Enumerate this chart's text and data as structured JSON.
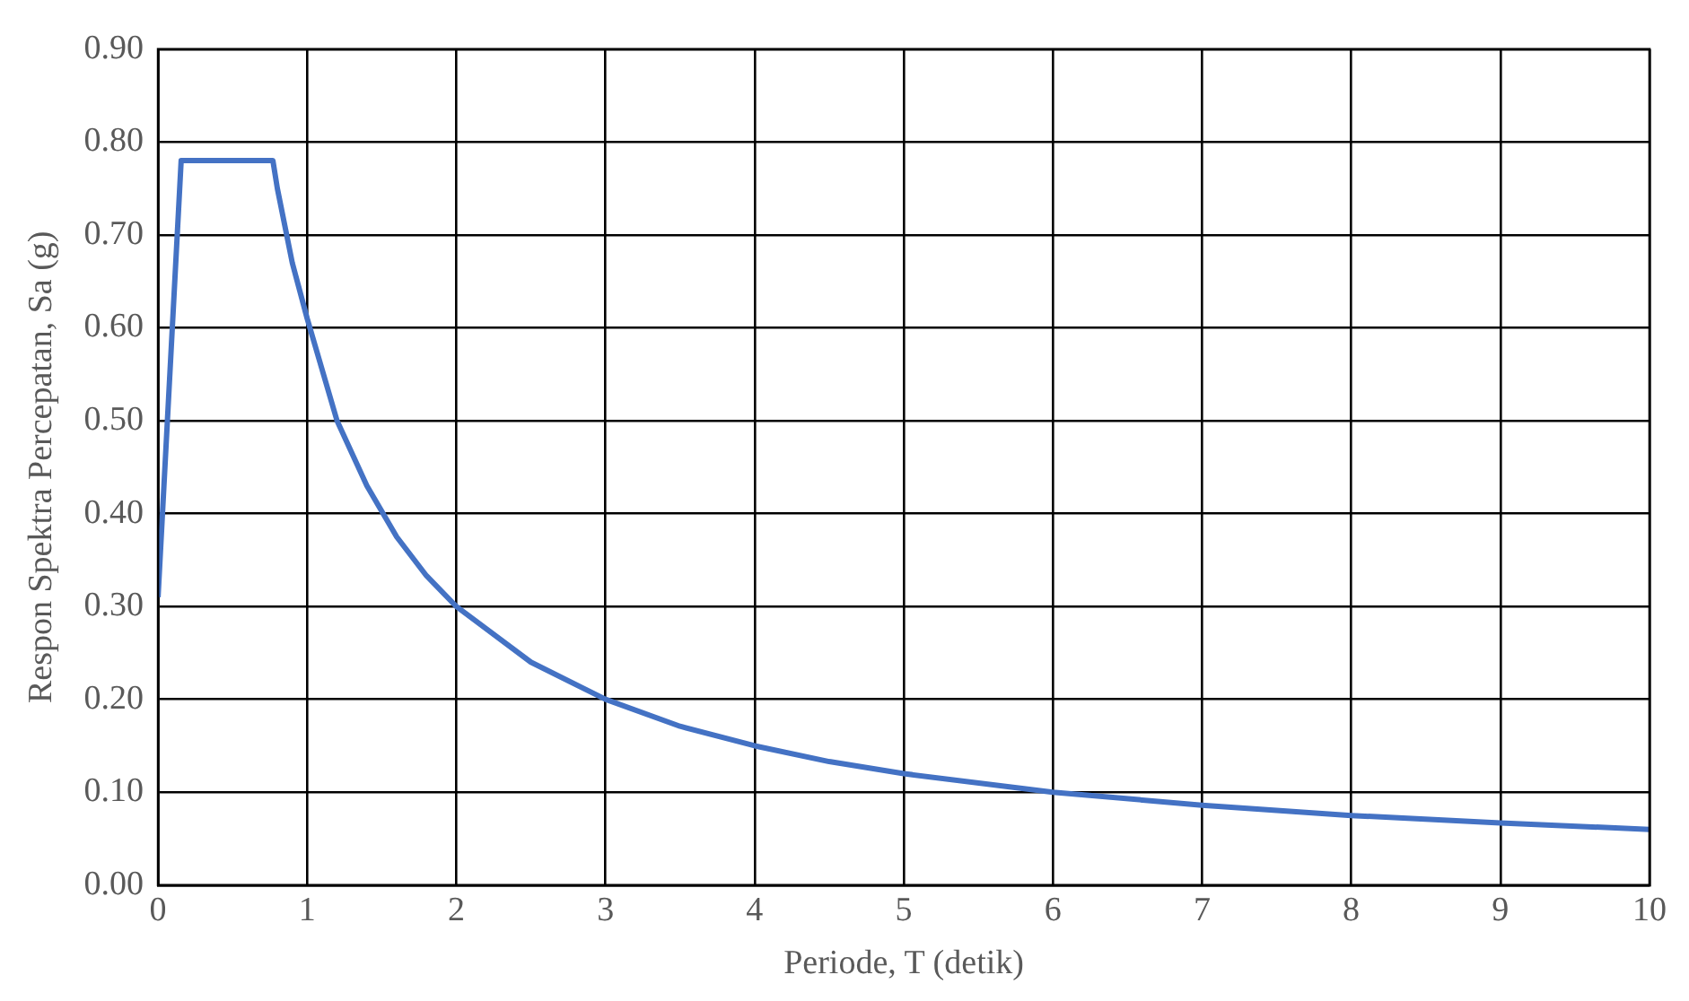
{
  "chart_data": {
    "type": "line",
    "xlabel": "Periode, T (detik)",
    "ylabel": "Respon Spektra Percepatan, Sa (g)",
    "x": [
      0,
      0.155,
      0.77,
      0.8,
      0.9,
      1,
      1.2,
      1.4,
      1.6,
      1.8,
      2,
      2.5,
      3,
      3.5,
      4,
      4.5,
      5,
      6,
      7,
      8,
      9,
      10
    ],
    "series": [
      {
        "color": "#4472c4",
        "values": [
          0.31,
          0.78,
          0.78,
          0.75,
          0.67,
          0.61,
          0.5,
          0.43,
          0.375,
          0.333,
          0.3,
          0.24,
          0.2,
          0.171,
          0.15,
          0.133,
          0.12,
          0.1,
          0.086,
          0.075,
          0.067,
          0.06
        ]
      }
    ],
    "xlim": [
      0,
      10
    ],
    "xticks": [
      0,
      1,
      2,
      3,
      4,
      5,
      6,
      7,
      8,
      9,
      10
    ],
    "ylim": [
      0,
      0.9
    ],
    "yticks": [
      {
        "value": 0,
        "label": "0.00"
      },
      {
        "value": 0.1,
        "label": "0.10"
      },
      {
        "value": 0.2,
        "label": "0.20"
      },
      {
        "value": 0.3,
        "label": "0.30"
      },
      {
        "value": 0.4,
        "label": "0.40"
      },
      {
        "value": 0.5,
        "label": "0.50"
      },
      {
        "value": 0.6,
        "label": "0.60"
      },
      {
        "value": 0.7,
        "label": "0.70"
      },
      {
        "value": 0.8,
        "label": "0.80"
      },
      {
        "value": 0.9,
        "label": "0.90"
      }
    ],
    "grid": true,
    "legend": false,
    "marker": "none",
    "line_style": "solid"
  }
}
